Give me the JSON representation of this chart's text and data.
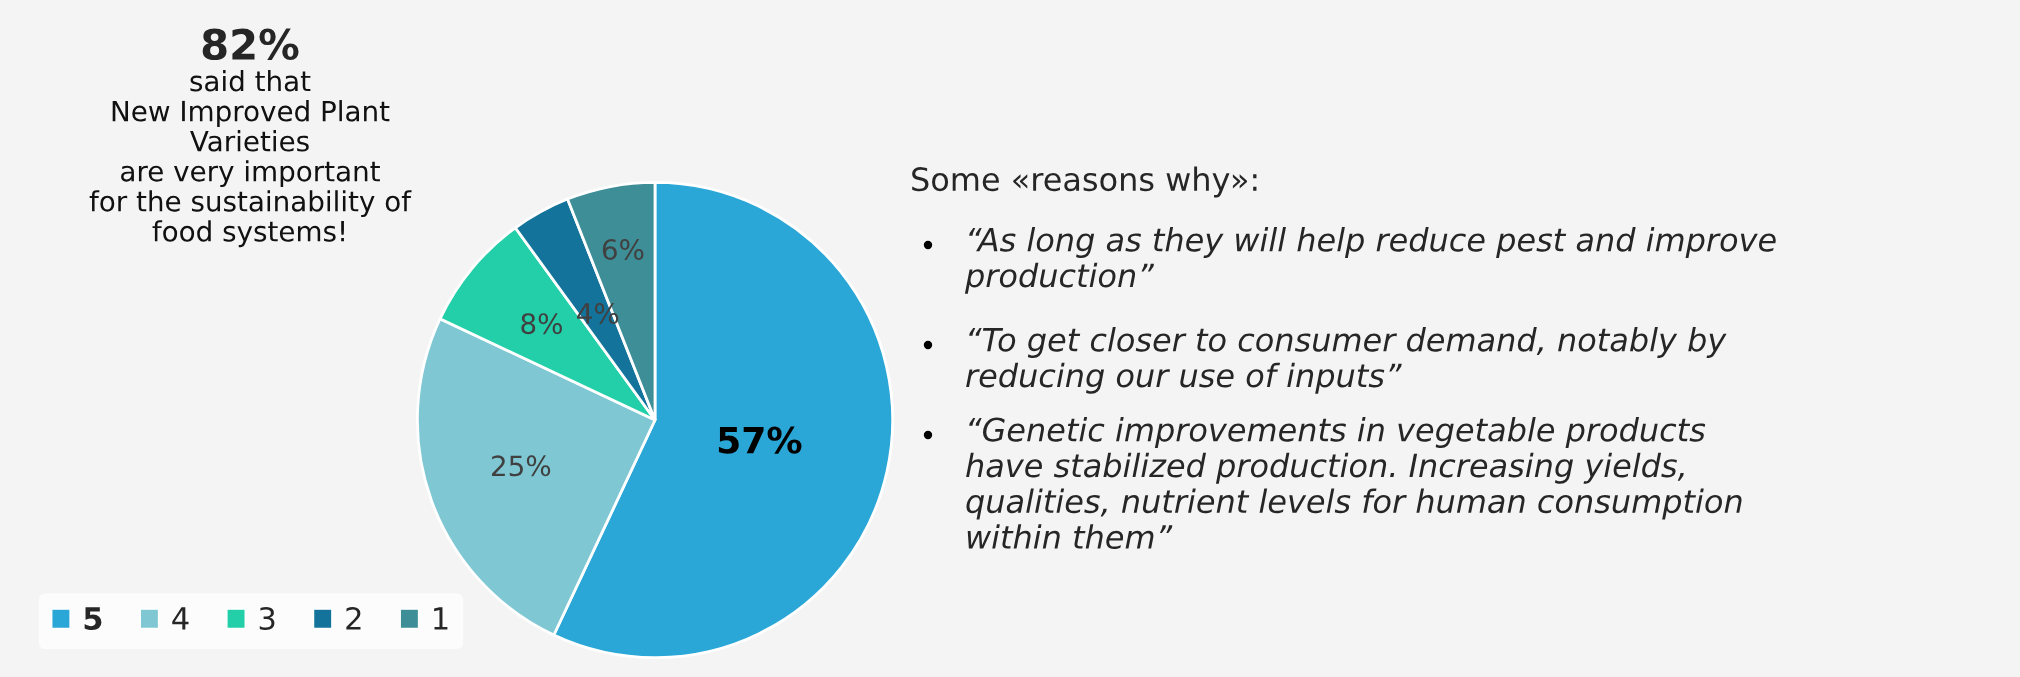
{
  "chart_data": {
    "type": "pie",
    "categories": [
      "5",
      "4",
      "3",
      "2",
      "1"
    ],
    "values": [
      57,
      25,
      8,
      4,
      6
    ],
    "colors": [
      "#2ba7d7",
      "#7ec7d3",
      "#22cfa8",
      "#13739a",
      "#3e8e97"
    ],
    "value_labels": [
      "57%",
      "25%",
      "8%",
      "4%",
      "6%"
    ],
    "legend": "bottom left",
    "annotations": [
      "82%",
      "said that\nNew Improved Plant\nVarieties\nare very important\nfor the sustainability of\nfood systems!",
      "Some «reasons why»:",
      "“As long as they will help reduce pest and improve\nproduction”",
      "“To get closer to consumer demand, notably by\nreducing our use of inputs”",
      "“Genetic improvements in vegetable products\nhave stabilized production. Increasing yields,\nqualities, nutrient levels for human consumption\nwithin them”"
    ]
  }
}
